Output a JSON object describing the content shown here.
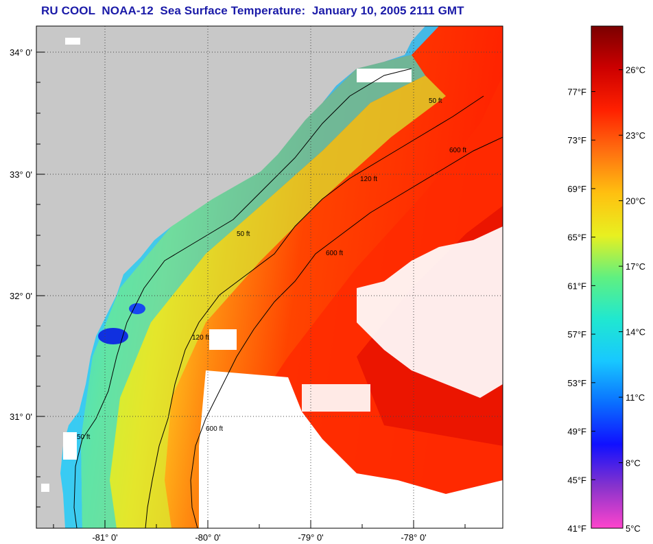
{
  "title": "RU COOL  NOAA-12  Sea Surface Temperature:  January 10, 2005 2111 GMT",
  "map": {
    "lat_labels": [
      "34° 0'",
      "33° 0'",
      "32° 0'",
      "31° 0'"
    ],
    "lon_labels": [
      "-81° 0'",
      "-80° 0'",
      "-79° 0'",
      "-78° 0'"
    ],
    "contour_labels": [
      "50 ft",
      "120 ft",
      "600 ft"
    ],
    "colors": {
      "land": "#c8c8c8",
      "cloud": "#ffffff",
      "contour": "#000000",
      "grid": "#555555"
    }
  },
  "colorbar": {
    "fahrenheit_labels": [
      "77°F",
      "73°F",
      "69°F",
      "65°F",
      "61°F",
      "57°F",
      "53°F",
      "49°F",
      "45°F",
      "41°F"
    ],
    "celsius_labels": [
      "26°C",
      "23°C",
      "20°C",
      "17°C",
      "14°C",
      "11°C",
      "8°C",
      "5°C"
    ],
    "range_c": [
      5,
      28
    ],
    "stops": [
      "#ff44cc",
      "#8833cc",
      "#1010ff",
      "#0a70ff",
      "#18c8ff",
      "#20e8d0",
      "#60f080",
      "#e8f020",
      "#ffc010",
      "#ff7010",
      "#ff2000",
      "#cc0000",
      "#7a0000"
    ]
  }
}
